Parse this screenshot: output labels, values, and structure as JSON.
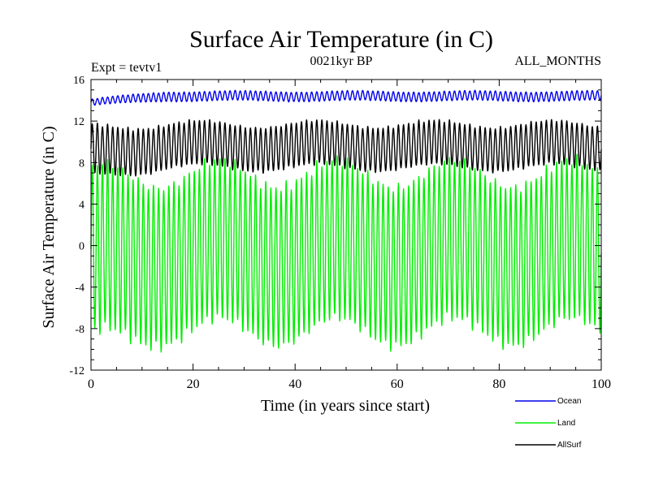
{
  "chart_data": {
    "type": "line",
    "title": "Surface Air Temperature (in C)",
    "subtitle_left": "Expt = tevtv1",
    "subtitle_center": "0021kyr BP",
    "subtitle_right": "ALL_MONTHS",
    "xlabel": "Time (in years since start)",
    "ylabel": "Surface Air Temperature (in C)",
    "xlim": [
      0,
      100
    ],
    "ylim": [
      -12,
      16
    ],
    "x_ticks": [
      "0",
      "20",
      "40",
      "60",
      "80",
      "100"
    ],
    "y_ticks": [
      "-12",
      "-8",
      "-4",
      "0",
      "4",
      "8",
      "12",
      "16"
    ],
    "legend_position": "bottom-right",
    "series": [
      {
        "name": "Ocean",
        "color": "#0000ee",
        "mean": 14.4,
        "amplitude": 0.45,
        "period_years": 1,
        "start_mean": 13.8,
        "start_amplitude": 0.3
      },
      {
        "name": "Land",
        "color": "#00ee00",
        "mean": -0.7,
        "amplitude": 7.6,
        "period_years": 1,
        "start_mean": -1.5,
        "start_amplitude": 8.0
      },
      {
        "name": "AllSurf",
        "color": "#000000",
        "mean": 9.6,
        "amplitude": 2.1,
        "period_years": 1,
        "start_mean": 9.0,
        "start_amplitude": 2.4
      }
    ]
  }
}
